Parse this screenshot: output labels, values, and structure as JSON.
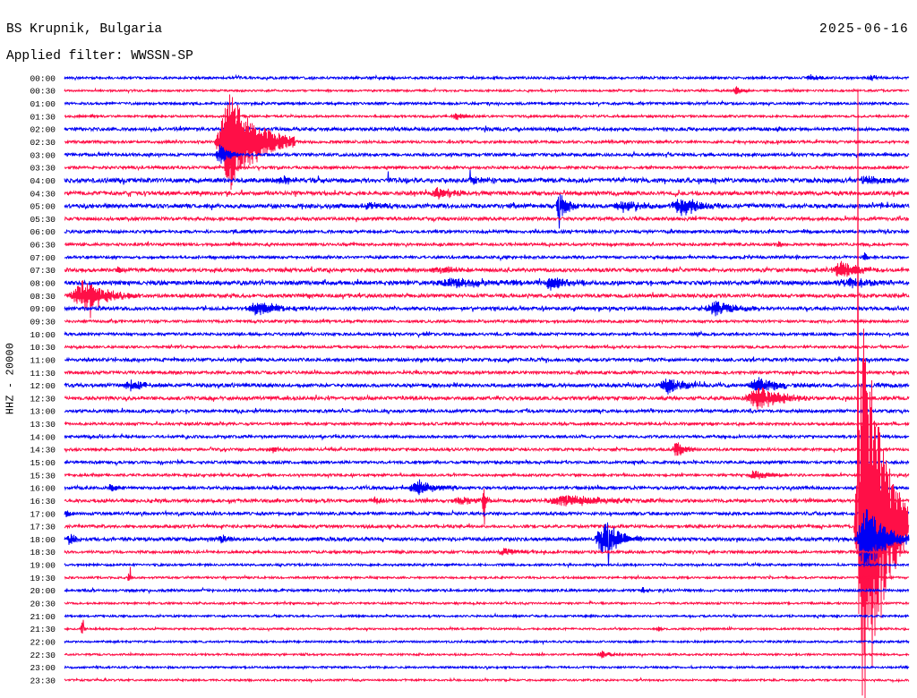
{
  "chart_data": {
    "type": "line",
    "title": "BS Krupnik, Bulgaria",
    "subtitle": "Applied filter: WWSSN-SP",
    "date": "2025-06-16",
    "ylabel": "HHZ - 20000",
    "colors": [
      "#0000f5",
      "#ff0f47"
    ],
    "traces": [
      {
        "label": "00:00",
        "noise": 1800
      },
      {
        "label": "00:30",
        "noise": 1500
      },
      {
        "label": "01:00",
        "noise": 1800
      },
      {
        "label": "01:30",
        "noise": 1600
      },
      {
        "label": "02:00",
        "noise": 2400
      },
      {
        "label": "02:30",
        "noise": 2000
      },
      {
        "label": "03:00",
        "noise": 2200
      },
      {
        "label": "03:30",
        "noise": 2000
      },
      {
        "label": "04:00",
        "noise": 3200
      },
      {
        "label": "04:30",
        "noise": 2800
      },
      {
        "label": "05:00",
        "noise": 3000
      },
      {
        "label": "05:30",
        "noise": 2400
      },
      {
        "label": "06:00",
        "noise": 2200
      },
      {
        "label": "06:30",
        "noise": 2000
      },
      {
        "label": "07:00",
        "noise": 2000
      },
      {
        "label": "07:30",
        "noise": 2600
      },
      {
        "label": "08:00",
        "noise": 3000
      },
      {
        "label": "08:30",
        "noise": 2600
      },
      {
        "label": "09:00",
        "noise": 2400
      },
      {
        "label": "09:30",
        "noise": 2000
      },
      {
        "label": "10:00",
        "noise": 2000
      },
      {
        "label": "10:30",
        "noise": 1800
      },
      {
        "label": "11:00",
        "noise": 2400
      },
      {
        "label": "11:30",
        "noise": 2200
      },
      {
        "label": "12:00",
        "noise": 2600
      },
      {
        "label": "12:30",
        "noise": 2600
      },
      {
        "label": "13:00",
        "noise": 2200
      },
      {
        "label": "13:30",
        "noise": 2000
      },
      {
        "label": "14:00",
        "noise": 2000
      },
      {
        "label": "14:30",
        "noise": 2000
      },
      {
        "label": "15:00",
        "noise": 2000
      },
      {
        "label": "15:30",
        "noise": 1800
      },
      {
        "label": "16:00",
        "noise": 2200
      },
      {
        "label": "16:30",
        "noise": 2400
      },
      {
        "label": "17:00",
        "noise": 2200
      },
      {
        "label": "17:30",
        "noise": 2200
      },
      {
        "label": "18:00",
        "noise": 2600
      },
      {
        "label": "18:30",
        "noise": 2000
      },
      {
        "label": "19:00",
        "noise": 1600
      },
      {
        "label": "19:30",
        "noise": 1500
      },
      {
        "label": "20:00",
        "noise": 1800
      },
      {
        "label": "20:30",
        "noise": 1500
      },
      {
        "label": "21:00",
        "noise": 1500
      },
      {
        "label": "21:30",
        "noise": 1400
      },
      {
        "label": "22:00",
        "noise": 1500
      },
      {
        "label": "22:30",
        "noise": 1400
      },
      {
        "label": "23:00",
        "noise": 1500
      },
      {
        "label": "23:30",
        "noise": 1400
      }
    ],
    "events": [
      {
        "time": "00:26:20",
        "duration_s": 50,
        "amplitude": 5600
      },
      {
        "time": "00:28:35",
        "duration_s": 30,
        "amplitude": 4200
      },
      {
        "time": "00:53:45",
        "duration_s": 35,
        "amplitude": 8400
      },
      {
        "time": "01:43:40",
        "duration_s": 80,
        "amplitude": 5600
      },
      {
        "time": "02:35:20",
        "duration_s": 170,
        "amplitude": 77000
      },
      {
        "time": "03:05:20",
        "duration_s": 60,
        "amplitude": 17000
      },
      {
        "time": "04:07:20",
        "duration_s": 120,
        "amplitude": 5600
      },
      {
        "time": "04:14:20",
        "duration_s": 60,
        "amplitude": 7000
      },
      {
        "time": "04:28:10",
        "duration_s": 110,
        "amplitude": 7000
      },
      {
        "time": "04:42:50",
        "duration_s": 140,
        "amplitude": 8400
      },
      {
        "time": "05:10:30",
        "duration_s": 100,
        "amplitude": 5600
      },
      {
        "time": "05:17:25",
        "duration_s": 50,
        "amplitude": 22400
      },
      {
        "time": "05:19:30",
        "duration_s": 120,
        "amplitude": 9800
      },
      {
        "time": "05:21:30",
        "duration_s": 130,
        "amplitude": 15400
      },
      {
        "time": "06:55:20",
        "duration_s": 20,
        "amplitude": 5600
      },
      {
        "time": "07:28:20",
        "duration_s": 30,
        "amplitude": 7000
      },
      {
        "time": "07:31:45",
        "duration_s": 40,
        "amplitude": 7000
      },
      {
        "time": "07:42:50",
        "duration_s": 150,
        "amplitude": 5600
      },
      {
        "time": "07:57:10",
        "duration_s": 120,
        "amplitude": 14000
      },
      {
        "time": "08:12:50",
        "duration_s": 350,
        "amplitude": 7000
      },
      {
        "time": "08:17:00",
        "duration_s": 90,
        "amplitude": 9800
      },
      {
        "time": "08:27:20",
        "duration_s": 160,
        "amplitude": 8400
      },
      {
        "time": "08:30:10",
        "duration_s": 150,
        "amplitude": 25200
      },
      {
        "time": "09:06:20",
        "duration_s": 160,
        "amplitude": 11200
      },
      {
        "time": "09:22:40",
        "duration_s": 140,
        "amplitude": 11200
      },
      {
        "time": "12:02:00",
        "duration_s": 110,
        "amplitude": 7000
      },
      {
        "time": "12:21:05",
        "duration_s": 100,
        "amplitude": 14000
      },
      {
        "time": "12:24:10",
        "duration_s": 140,
        "amplitude": 12600
      },
      {
        "time": "12:54:10",
        "duration_s": 140,
        "amplitude": 19600
      },
      {
        "time": "14:37:15",
        "duration_s": 40,
        "amplitude": 5600
      },
      {
        "time": "14:51:35",
        "duration_s": 55,
        "amplitude": 14000
      },
      {
        "time": "15:54:10",
        "duration_s": 100,
        "amplitude": 7000
      },
      {
        "time": "16:01:30",
        "duration_s": 40,
        "amplitude": 7000
      },
      {
        "time": "16:12:10",
        "duration_s": 110,
        "amplitude": 11200
      },
      {
        "time": "16:40:45",
        "duration_s": 100,
        "amplitude": 4200
      },
      {
        "time": "16:43:40",
        "duration_s": 110,
        "amplitude": 5600
      },
      {
        "time": "16:44:50",
        "duration_s": 15,
        "amplitude": 25200
      },
      {
        "time": "16:47:00",
        "duration_s": 240,
        "amplitude": 9800
      },
      {
        "time": "17:00:00",
        "duration_s": 20,
        "amplitude": 7000
      },
      {
        "time": "17:58:03",
        "duration_s": 115,
        "amplitude": 349000
      },
      {
        "time": "18:00:00",
        "duration_s": 50,
        "amplitude": 8400
      },
      {
        "time": "18:05:25",
        "duration_s": 45,
        "amplitude": 7000
      },
      {
        "time": "18:18:50",
        "duration_s": 100,
        "amplitude": 30700
      },
      {
        "time": "18:28:05",
        "duration_s": 115,
        "amplitude": 56000
      },
      {
        "time": "18:45:20",
        "duration_s": 90,
        "amplitude": 5600
      },
      {
        "time": "19:32:15",
        "duration_s": 8,
        "amplitude": 14000
      },
      {
        "time": "20:20:30",
        "duration_s": 20,
        "amplitude": 5600
      },
      {
        "time": "21:30:35",
        "duration_s": 10,
        "amplitude": 12600
      },
      {
        "time": "21:51:05",
        "duration_s": 10,
        "amplitude": 7000
      },
      {
        "time": "22:48:55",
        "duration_s": 60,
        "amplitude": 5600
      }
    ],
    "spikes": [
      {
        "time": "04:11:30",
        "value": 14000
      },
      {
        "time": "04:14:25",
        "value": 16800
      },
      {
        "time": "05:17:35",
        "value": -35000
      },
      {
        "time": "08:30:55",
        "value": -35000
      },
      {
        "time": "16:44:55",
        "value": -37700
      },
      {
        "time": "17:58:11",
        "value": 683000
      },
      {
        "time": "18:19:20",
        "value": -42000
      },
      {
        "time": "19:32:20",
        "value": 16800
      },
      {
        "time": "21:30:40",
        "value": 14000
      }
    ]
  }
}
